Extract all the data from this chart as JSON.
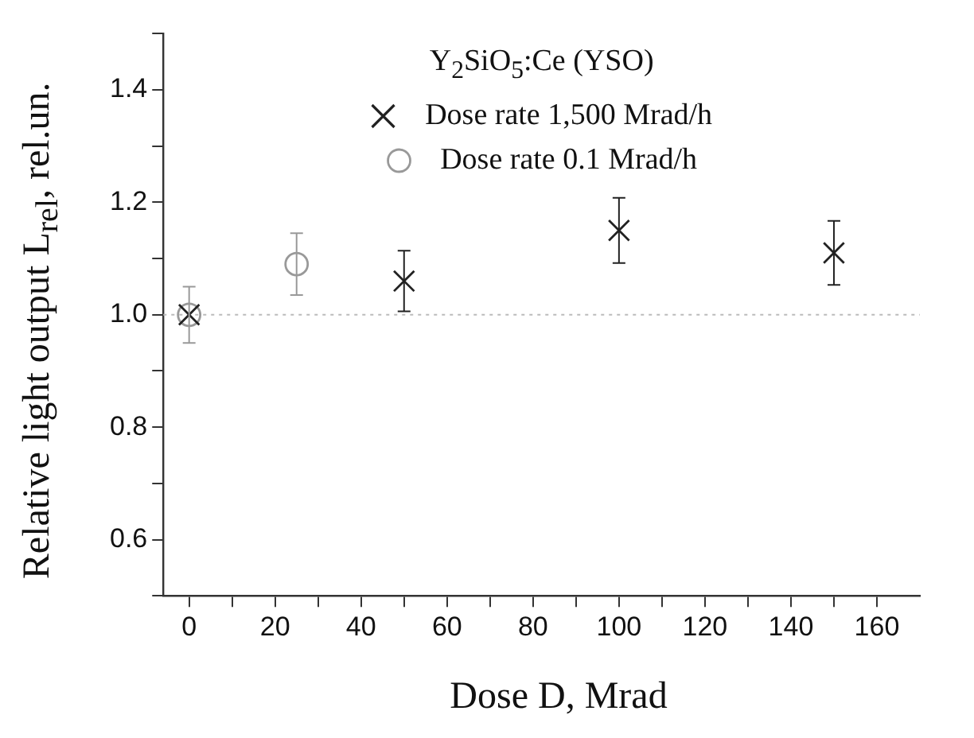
{
  "chart_data": {
    "type": "scatter",
    "xlabel": "Dose D, Mrad",
    "ylabel": "Relative light output L$_{rel}$, rel.un.",
    "legend_title": "Y$_{2}$SiO$_{5}$:Ce (YSO)",
    "legend": "top",
    "grid": false,
    "xlim": [
      -6,
      170
    ],
    "xticks": [
      0,
      {
        "value": 10,
        "label": null
      },
      20,
      {
        "value": 30,
        "label": null
      },
      40,
      {
        "value": 50,
        "label": null
      },
      60,
      {
        "value": 70,
        "label": null
      },
      80,
      {
        "value": 90,
        "label": null
      },
      100,
      {
        "value": 110,
        "label": null
      },
      120,
      {
        "value": 130,
        "label": null
      },
      140,
      {
        "value": 150,
        "label": null
      },
      160
    ],
    "ylim": [
      0.5,
      1.5
    ],
    "yticks": [
      {
        "value": 0.5,
        "label": null
      },
      0.6,
      {
        "value": 0.7,
        "label": null
      },
      0.8,
      {
        "value": 0.9,
        "label": null
      },
      {
        "value": 1.0,
        "label": "1.0"
      },
      {
        "value": 1.1,
        "label": null
      },
      1.2,
      {
        "value": 1.3,
        "label": null
      },
      1.4,
      {
        "value": 1.5,
        "label": null
      }
    ],
    "series": [
      {
        "name": "Dose rate 1,500 Mrad/h",
        "color": "#222222",
        "marker": "cross",
        "x": [
          0,
          50,
          100,
          150
        ],
        "values": [
          1.0,
          1.06,
          1.15,
          1.11
        ],
        "errors": [
          null,
          0.054,
          0.058,
          0.057
        ]
      },
      {
        "name": "Dose rate 0.1 Mrad/h",
        "color": "#999999",
        "marker": "circle",
        "x": [
          0,
          25
        ],
        "values": [
          1.0,
          1.09
        ],
        "errors": [
          0.05,
          0.055
        ]
      }
    ],
    "ref_lines": [
      {
        "axis": "y",
        "value": 1.0,
        "color": "#bbbbbb",
        "line_style": "dotted"
      }
    ]
  }
}
